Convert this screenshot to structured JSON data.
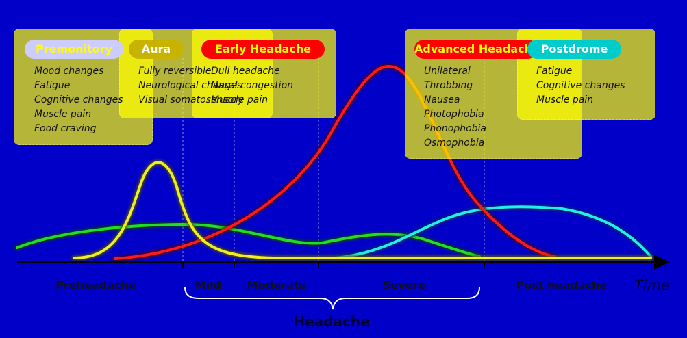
{
  "panels": [
    {
      "title": "Premonitory",
      "items": [
        "Mood changes",
        "Fatigue",
        "Cognitive changes",
        "Muscle pain",
        "Food craving"
      ]
    },
    {
      "title": "Aura",
      "items": [
        "Fully reversible",
        "Neurological changes",
        "Visual somatosensory"
      ]
    },
    {
      "title": "Early Headache",
      "items": [
        "Dull headache",
        "Nasal congestion",
        "Muscle pain"
      ]
    },
    {
      "title": "Advanced Headache",
      "items": [
        "Unilateral",
        "Throbbing",
        "Nausea",
        "Photophobia",
        "Phonophobia",
        "Osmophobia"
      ]
    },
    {
      "title": "Postdrome",
      "items": [
        "Fatigue",
        "Cognitive changes",
        "Muscle pain"
      ]
    }
  ],
  "phases": [
    "Preheadache",
    "Mild",
    "Moderate",
    "Severe",
    "Post headache"
  ],
  "axis_label": "Time",
  "brace_label": "Headache"
}
